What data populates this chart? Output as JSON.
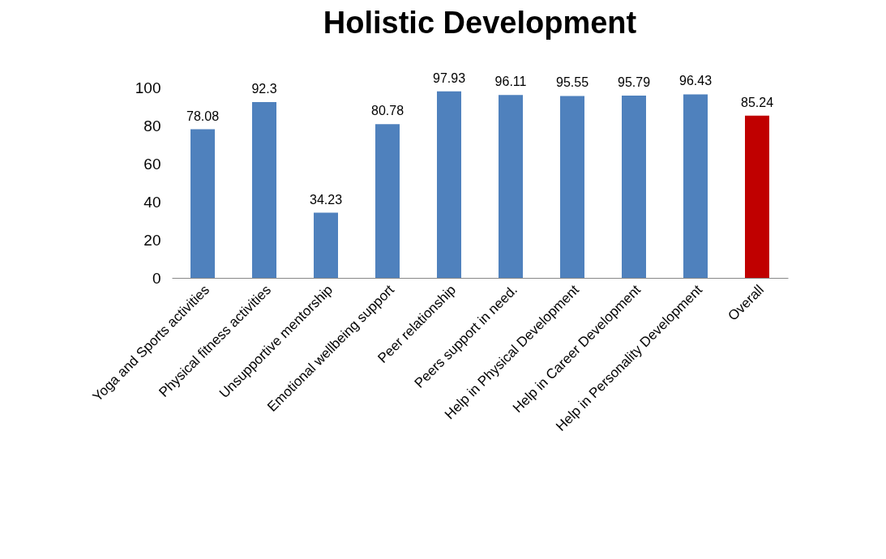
{
  "chart_data": {
    "type": "bar",
    "title": "Holistic Development",
    "categories": [
      "Yoga and Sports activities",
      "Physical fitness activities",
      "Unsupportive mentorship",
      "Emotional wellbeing support",
      "Peer relationship",
      "Peers support in need.",
      "Help in Physical Development",
      "Help in Career Development",
      "Help in Personality Development",
      "Overall"
    ],
    "values": [
      78.08,
      92.3,
      34.23,
      80.78,
      97.93,
      96.11,
      95.55,
      95.79,
      96.43,
      85.24
    ],
    "colors": [
      "#4f81bd",
      "#4f81bd",
      "#4f81bd",
      "#4f81bd",
      "#4f81bd",
      "#4f81bd",
      "#4f81bd",
      "#4f81bd",
      "#4f81bd",
      "#c00000"
    ],
    "ylim": [
      0,
      100
    ],
    "yticks": [
      0,
      20,
      40,
      60,
      80,
      100
    ],
    "data_labels": true
  }
}
